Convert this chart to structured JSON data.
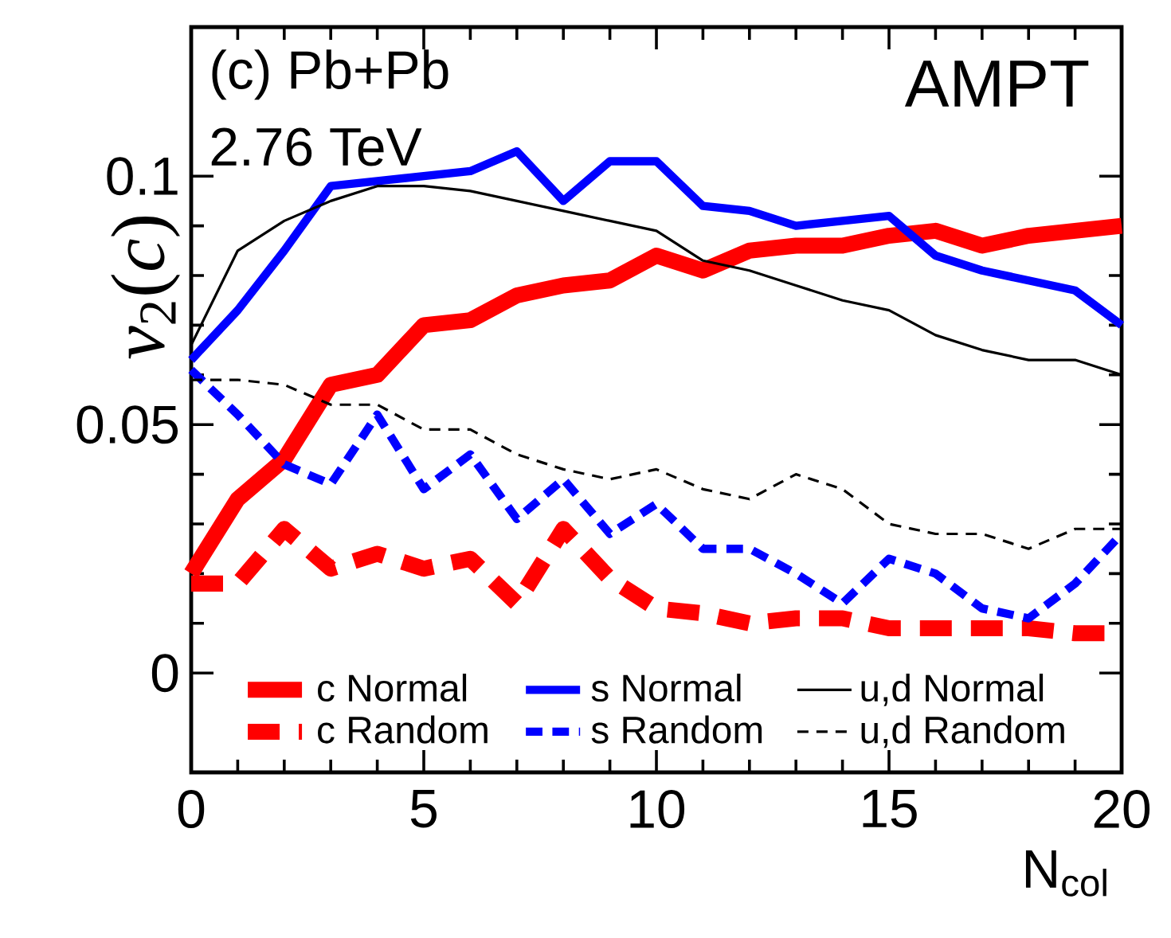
{
  "chart_data": {
    "type": "line",
    "xlabel": "N$_{col}$",
    "ylabel": "*v*$_{2}$(*c*)",
    "annotations": [
      "(c) Pb+Pb",
      "2.76 TeV",
      "AMPT"
    ],
    "x": [
      0,
      1,
      2,
      3,
      4,
      5,
      6,
      7,
      8,
      9,
      10,
      11,
      12,
      13,
      14,
      15,
      16,
      17,
      18,
      19,
      20
    ],
    "xlim": [
      0,
      20
    ],
    "xticks": [
      0,
      5,
      10,
      15,
      20
    ],
    "ylim": [
      -0.02,
      0.13
    ],
    "yticks": [
      0,
      0.05,
      0.1
    ],
    "grid": false,
    "legend": "bottom",
    "marker": "none",
    "series": [
      {
        "name": "c Normal",
        "color": "#ff0000",
        "line_style": "solid",
        "values": [
          0.02,
          0.035,
          0.043,
          0.058,
          0.06,
          0.07,
          0.071,
          0.076,
          0.078,
          0.079,
          0.084,
          0.081,
          0.085,
          0.086,
          0.086,
          0.088,
          0.089,
          0.086,
          0.088,
          0.089,
          0.09
        ]
      },
      {
        "name": "c Random",
        "color": "#ff0000",
        "line_style": "dashed",
        "values": [
          0.018,
          0.018,
          0.029,
          0.021,
          0.024,
          0.021,
          0.023,
          0.014,
          0.029,
          0.019,
          0.013,
          0.012,
          0.01,
          0.011,
          0.011,
          0.009,
          0.009,
          0.009,
          0.009,
          0.008,
          0.008
        ]
      },
      {
        "name": "s Normal",
        "color": "#0000ff",
        "line_style": "solid",
        "values": [
          0.063,
          0.073,
          0.085,
          0.098,
          0.099,
          0.1,
          0.101,
          0.105,
          0.095,
          0.103,
          0.103,
          0.094,
          0.093,
          0.09,
          0.091,
          0.092,
          0.084,
          0.081,
          0.079,
          0.077,
          0.07
        ]
      },
      {
        "name": "s Random",
        "color": "#0000ff",
        "line_style": "dashed",
        "values": [
          0.061,
          0.052,
          0.042,
          0.038,
          0.052,
          0.037,
          0.044,
          0.031,
          0.039,
          0.028,
          0.034,
          0.025,
          0.025,
          0.02,
          0.014,
          0.023,
          0.02,
          0.013,
          0.011,
          0.018,
          0.028
        ]
      },
      {
        "name": "u,d Normal",
        "color": "#000000",
        "line_style": "solid",
        "values": [
          0.066,
          0.085,
          0.091,
          0.095,
          0.098,
          0.098,
          0.097,
          0.095,
          0.093,
          0.091,
          0.089,
          0.083,
          0.081,
          0.078,
          0.075,
          0.073,
          0.068,
          0.065,
          0.063,
          0.063,
          0.06
        ]
      },
      {
        "name": "u,d Random",
        "color": "#000000",
        "line_style": "dashed",
        "values": [
          0.059,
          0.059,
          0.058,
          0.054,
          0.054,
          0.049,
          0.049,
          0.044,
          0.041,
          0.039,
          0.041,
          0.037,
          0.035,
          0.04,
          0.037,
          0.03,
          0.028,
          0.028,
          0.025,
          0.029,
          0.029
        ]
      }
    ]
  }
}
